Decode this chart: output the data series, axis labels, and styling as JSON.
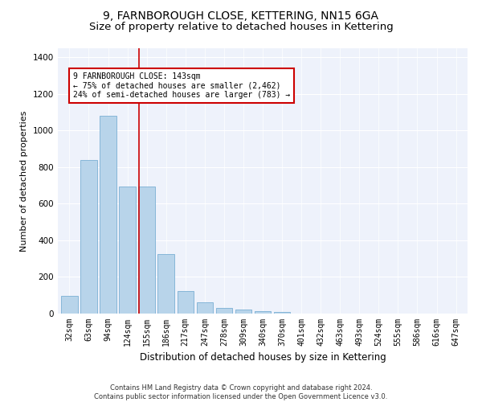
{
  "title": "9, FARNBOROUGH CLOSE, KETTERING, NN15 6GA",
  "subtitle": "Size of property relative to detached houses in Kettering",
  "xlabel": "Distribution of detached houses by size in Kettering",
  "ylabel": "Number of detached properties",
  "categories": [
    "32sqm",
    "63sqm",
    "94sqm",
    "124sqm",
    "155sqm",
    "186sqm",
    "217sqm",
    "247sqm",
    "278sqm",
    "309sqm",
    "340sqm",
    "370sqm",
    "401sqm",
    "432sqm",
    "463sqm",
    "493sqm",
    "524sqm",
    "555sqm",
    "586sqm",
    "616sqm",
    "647sqm"
  ],
  "values": [
    95,
    840,
    1080,
    695,
    695,
    325,
    125,
    60,
    30,
    22,
    15,
    10,
    0,
    0,
    0,
    0,
    0,
    0,
    0,
    0,
    0
  ],
  "bar_color": "#b8d4ea",
  "bar_edge_color": "#7aafd4",
  "vline_color": "#cc0000",
  "annotation_text": "9 FARNBOROUGH CLOSE: 143sqm\n← 75% of detached houses are smaller (2,462)\n24% of semi-detached houses are larger (783) →",
  "box_color": "#cc0000",
  "ylim": [
    0,
    1450
  ],
  "yticks": [
    0,
    200,
    400,
    600,
    800,
    1000,
    1200,
    1400
  ],
  "bg_color": "#eef2fb",
  "footer_line1": "Contains HM Land Registry data © Crown copyright and database right 2024.",
  "footer_line2": "Contains public sector information licensed under the Open Government Licence v3.0.",
  "title_fontsize": 10,
  "subtitle_fontsize": 9.5,
  "ylabel_fontsize": 8,
  "xlabel_fontsize": 8.5,
  "tick_fontsize": 7,
  "annotation_fontsize": 7,
  "footer_fontsize": 6
}
